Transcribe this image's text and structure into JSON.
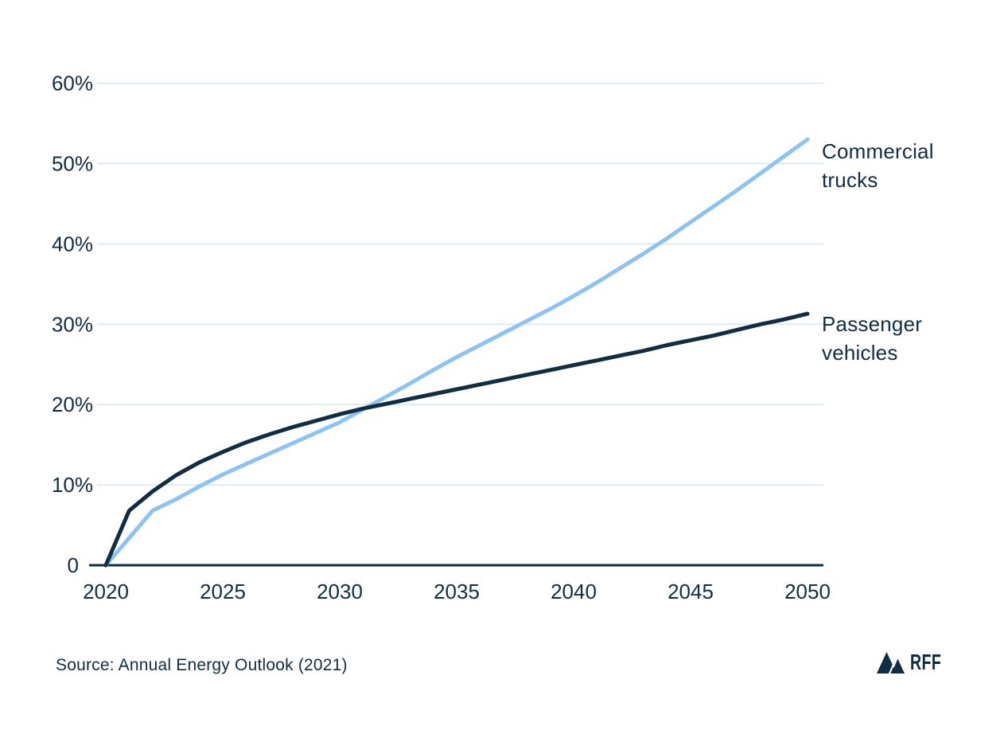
{
  "chart_data": {
    "type": "line",
    "title": "",
    "xlabel": "",
    "ylabel": "",
    "xlim": [
      2020,
      2050
    ],
    "ylim": [
      0,
      60
    ],
    "grid": "horizontal",
    "legend_position": "labels-at-line-ends",
    "x": [
      2020,
      2021,
      2022,
      2023,
      2024,
      2025,
      2026,
      2027,
      2028,
      2029,
      2030,
      2031,
      2032,
      2033,
      2034,
      2035,
      2036,
      2037,
      2038,
      2039,
      2040,
      2041,
      2042,
      2043,
      2044,
      2045,
      2046,
      2047,
      2048,
      2049,
      2050
    ],
    "x_ticks": [
      {
        "label": "2020",
        "value": 2020
      },
      {
        "label": "2025",
        "value": 2025
      },
      {
        "label": "2030",
        "value": 2030
      },
      {
        "label": "2035",
        "value": 2035
      },
      {
        "label": "2040",
        "value": 2040
      },
      {
        "label": "2045",
        "value": 2045
      },
      {
        "label": "2050",
        "value": 2050
      }
    ],
    "y_ticks": [
      {
        "label": "60%",
        "value": 60
      },
      {
        "label": "50%",
        "value": 50
      },
      {
        "label": "40%",
        "value": 40
      },
      {
        "label": "30%",
        "value": 30
      },
      {
        "label": "20%",
        "value": 20
      },
      {
        "label": "10%",
        "value": 10
      },
      {
        "label": "0",
        "value": 0
      }
    ],
    "series": [
      {
        "name": "Commercial trucks",
        "label_lines": [
          "Commercial",
          "trucks"
        ],
        "color": "#8dc3f0",
        "values": [
          0,
          3.4,
          6.8,
          8.2,
          9.8,
          11.3,
          12.6,
          13.9,
          15.2,
          16.5,
          17.8,
          19.4,
          21.0,
          22.6,
          24.3,
          25.9,
          27.4,
          28.9,
          30.4,
          31.9,
          33.5,
          35.2,
          37.0,
          38.8,
          40.7,
          42.7,
          44.7,
          46.7,
          48.8,
          50.9,
          53.0
        ]
      },
      {
        "name": "Passenger vehicles",
        "label_lines": [
          "Passenger",
          "vehicles"
        ],
        "color": "#112d42",
        "values": [
          0,
          6.8,
          9.2,
          11.2,
          12.8,
          14.1,
          15.3,
          16.3,
          17.2,
          18.0,
          18.8,
          19.5,
          20.1,
          20.7,
          21.3,
          21.9,
          22.5,
          23.1,
          23.7,
          24.3,
          24.9,
          25.5,
          26.1,
          26.7,
          27.4,
          28.0,
          28.6,
          29.3,
          30.0,
          30.6,
          31.3
        ]
      }
    ]
  },
  "source": "Source: Annual Energy Outlook (2021)",
  "logo": {
    "text": "RFF"
  },
  "colors": {
    "navy": "#112d42",
    "light_blue": "#8dc3f0",
    "gridline": "#dfeaf7",
    "background": "#ffffff"
  }
}
